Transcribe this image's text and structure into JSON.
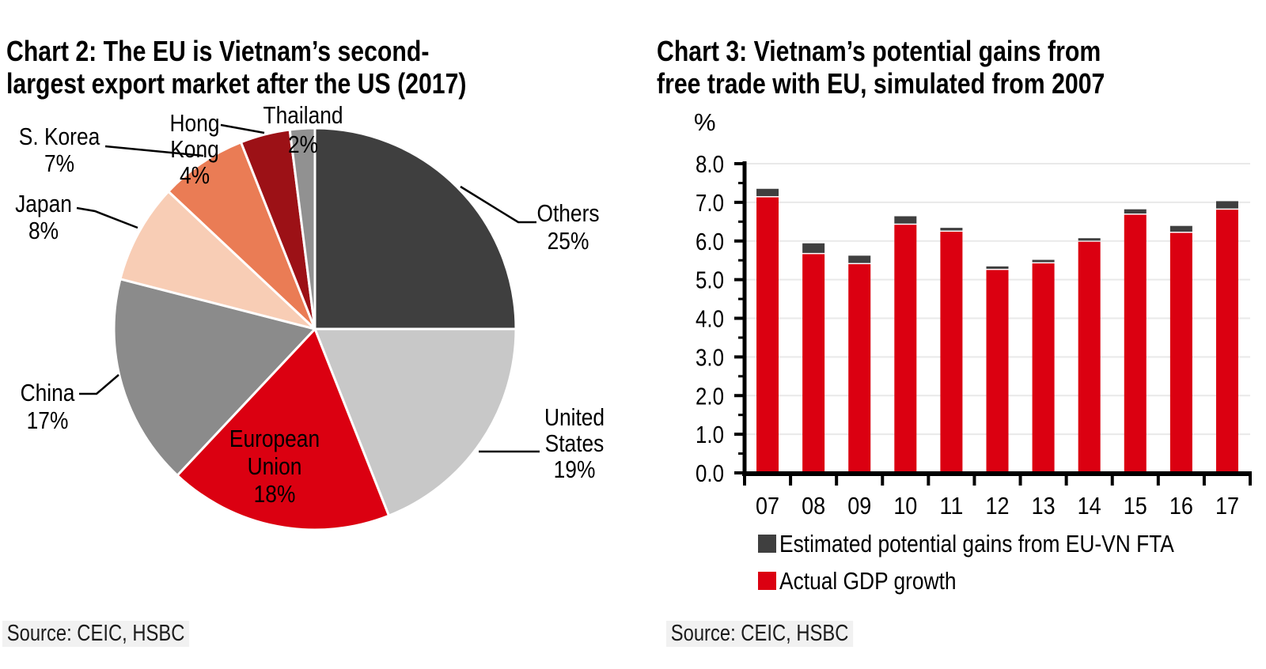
{
  "accent_red": "#db0011",
  "dark_charcoal": "#3f3f3f",
  "chart_data": [
    {
      "type": "pie",
      "title": "Chart 2: The EU is Vietnam’s second-\nlargest export market after the US (2017)",
      "source": "Source: CEIC, HSBC",
      "unit": "%",
      "slices": [
        {
          "label": "Others",
          "value": 25,
          "color": "#3f3f3f"
        },
        {
          "label": "United States",
          "value": 19,
          "color": "#c8c8c8"
        },
        {
          "label": "European Union",
          "value": 18,
          "color": "#db0011"
        },
        {
          "label": "China",
          "value": 17,
          "color": "#8b8b8b"
        },
        {
          "label": "Japan",
          "value": 8,
          "color": "#f8cdb5"
        },
        {
          "label": "S. Korea",
          "value": 7,
          "color": "#ea7c55"
        },
        {
          "label": "Hong Kong",
          "value": 4,
          "color": "#9c1116"
        },
        {
          "label": "Thailand",
          "value": 2,
          "color": "#919191"
        }
      ]
    },
    {
      "type": "bar",
      "stacked": true,
      "title": "Chart 3: Vietnam’s potential gains from\nfree trade with EU, simulated from 2007",
      "source": "Source: CEIC, HSBC",
      "ylabel": "%",
      "ylim": [
        0.0,
        8.0
      ],
      "ytick_step": 1.0,
      "grid": true,
      "legend_position": "bottom-left",
      "categories": [
        "07",
        "08",
        "09",
        "10",
        "11",
        "12",
        "13",
        "14",
        "15",
        "16",
        "17"
      ],
      "series": [
        {
          "name": "Actual GDP growth",
          "color": "#db0011",
          "values": [
            7.13,
            5.66,
            5.4,
            6.42,
            6.24,
            5.25,
            5.42,
            5.98,
            6.68,
            6.21,
            6.81
          ]
        },
        {
          "name": "Estimated potential gains from EU-VN FTA",
          "color": "#3f3f3f",
          "values": [
            0.22,
            0.28,
            0.22,
            0.22,
            0.1,
            0.06,
            0.05,
            0.04,
            0.14,
            0.18,
            0.22
          ]
        }
      ]
    }
  ]
}
